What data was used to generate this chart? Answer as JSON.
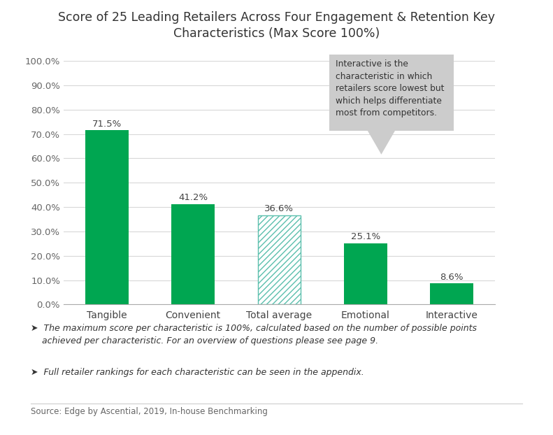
{
  "title": "Score of 25 Leading Retailers Across Four Engagement & Retention Key\nCharacteristics (Max Score 100%)",
  "categories": [
    "Tangible",
    "Convenient",
    "Total average",
    "Emotional",
    "Interactive"
  ],
  "values": [
    71.5,
    41.2,
    36.6,
    25.1,
    8.6
  ],
  "bar_colors": [
    "#00a651",
    "#00a651",
    "none",
    "#00a651",
    "#00a651"
  ],
  "hatch_bar_index": 2,
  "hatch_color": "#5bbfad",
  "ylim": [
    0,
    100
  ],
  "yticks": [
    0,
    10,
    20,
    30,
    40,
    50,
    60,
    70,
    80,
    90,
    100
  ],
  "ytick_labels": [
    "0.0%",
    "10.0%",
    "20.0%",
    "30.0%",
    "40.0%",
    "50.0%",
    "60.0%",
    "70.0%",
    "80.0%",
    "90.0%",
    "100.0%"
  ],
  "value_labels": [
    "71.5%",
    "41.2%",
    "36.6%",
    "25.1%",
    "8.6%"
  ],
  "annotation_text": "Interactive is the\ncharacteristic in which\nretailers score lowest but\nwhich helps differentiate\nmost from competitors.",
  "annotation_box_color": "#cccccc",
  "footnote1_arrow": "➤",
  "footnote1_text": "  The maximum score per characteristic is 100%, calculated based on the number of possible points\n    achieved per characteristic. For an overview of questions please see page 9.",
  "footnote2_arrow": "➤",
  "footnote2_text": "  Full retailer rankings for each characteristic can be seen in the appendix.",
  "source": "Source: Edge by Ascential, 2019, In-house Benchmarking",
  "bg_color": "#ffffff",
  "grid_color": "#d8d8d8",
  "title_fontsize": 12.5,
  "label_fontsize": 10,
  "tick_fontsize": 9.5,
  "value_label_fontsize": 9.5,
  "footnote_fontsize": 9,
  "source_fontsize": 8.5
}
